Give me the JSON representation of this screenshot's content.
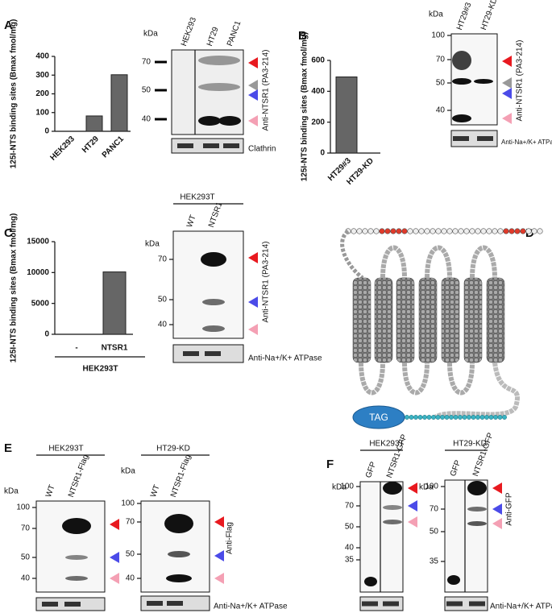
{
  "panels": [
    "A",
    "B",
    "C",
    "D",
    "E",
    "F"
  ],
  "chart_data": [
    {
      "type": "bar",
      "ylabel": "125I-NTS binding sites (Bmax fmol/mg)",
      "categories": [
        "HEK293",
        "HT29",
        "PANC1"
      ],
      "values": [
        0,
        82,
        302
      ],
      "ylim": [
        0,
        400
      ],
      "yticks": [
        0,
        100,
        200,
        300,
        400
      ],
      "color": "#666666"
    },
    {
      "type": "bar",
      "ylabel": "125I-NTS binding sites (Bmax fmol/mg)",
      "categories": [
        "HT29#3",
        "HT29-KD"
      ],
      "values": [
        493,
        0
      ],
      "ylim": [
        0,
        600
      ],
      "yticks": [
        0,
        200,
        400,
        600
      ],
      "color": "#666666"
    },
    {
      "type": "bar",
      "ylabel": "125I-NTS binding sites (Bmax fmol/mg)",
      "categories": [
        "-",
        "NTSR1"
      ],
      "values": [
        0,
        10100
      ],
      "ylim": [
        0,
        15000
      ],
      "yticks": [
        0,
        5000,
        10000,
        15000
      ],
      "color": "#666666",
      "group_label": "HEK293T"
    }
  ],
  "blots": [
    {
      "unit": "kDa",
      "lanes": [
        "HEK293",
        "HT29",
        "PANC1"
      ],
      "markers": [
        70,
        50,
        40
      ],
      "antibody": "Anti-NTSR1 (PA3-214)",
      "loading": "Clathrin"
    },
    {
      "unit": "kDa",
      "lanes": [
        "HT29#3",
        "HT29-KD"
      ],
      "markers": [
        100,
        70,
        50,
        40
      ],
      "antibody": "Anti-NTSR1 (PA3-214)",
      "loading": "Anti-Na+/K+ ATPase"
    },
    {
      "unit": "kDa",
      "header": "HEK293T",
      "lanes": [
        "WT",
        "NTSR1"
      ],
      "markers": [
        70,
        50,
        40
      ],
      "antibody": "Anti-NTSR1 (PA3-214)",
      "loading": "Anti-Na+/K+ ATPase"
    },
    {
      "unit": "kDa",
      "header": "HEK293T",
      "lanes": [
        "WT",
        "NTSR1-Flag"
      ],
      "markers": [
        100,
        70,
        50,
        40
      ]
    },
    {
      "unit": "kDa",
      "header": "HT29-KD",
      "lanes": [
        "WT",
        "NTSR1-Flag"
      ],
      "markers": [
        100,
        70,
        50,
        40
      ],
      "antibody": "Anti-Flag",
      "loading": "Anti-Na+/K+ ATPase"
    },
    {
      "unit": "kDa",
      "header": "HEK293T",
      "lanes": [
        "GFP",
        "NTSR1-GFP"
      ],
      "markers": [
        100,
        70,
        50,
        40,
        35
      ]
    },
    {
      "unit": "kDa",
      "header": "HT29-KD",
      "lanes": [
        "GFP",
        "NTSR1-GFP"
      ],
      "markers": [
        100,
        70,
        50,
        35
      ],
      "antibody": "Anti-GFP",
      "loading": "Anti-Na+/K+ ATPase"
    }
  ],
  "diagram": {
    "tag": "TAG"
  }
}
